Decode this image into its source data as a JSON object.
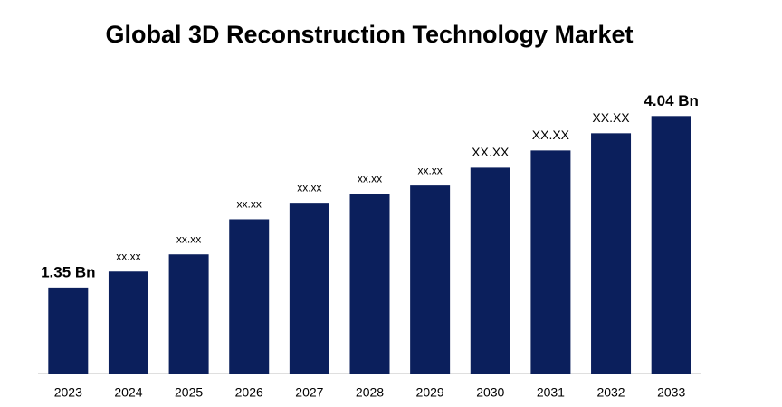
{
  "chart_data": {
    "type": "bar",
    "title": "Global 3D Reconstruction Technology Market",
    "categories": [
      "2023",
      "2024",
      "2025",
      "2026",
      "2027",
      "2028",
      "2029",
      "2030",
      "2031",
      "2032",
      "2033"
    ],
    "values": [
      1.35,
      1.6,
      1.87,
      2.42,
      2.68,
      2.82,
      2.95,
      3.23,
      3.5,
      3.77,
      4.04
    ],
    "value_labels": [
      "1.35 Bn",
      "xx.xx",
      "xx.xx",
      "xx.xx",
      "xx.xx",
      "xx.xx",
      "xx.xx",
      "XX.XX",
      "XX.XX",
      "XX.XX",
      "4.04 Bn"
    ],
    "color": "#0b1f5c",
    "ylim": [
      0,
      4.3
    ]
  }
}
